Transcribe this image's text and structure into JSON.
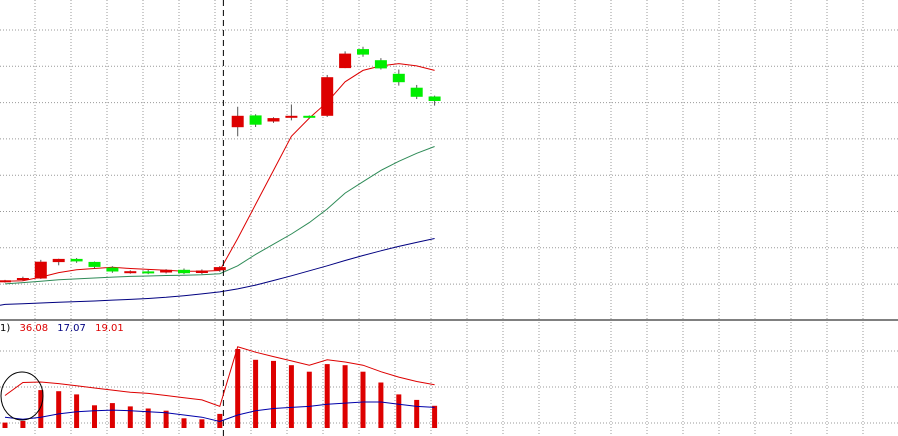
{
  "chart_data": [
    {
      "type": "candlestick",
      "panel": "price",
      "x": [
        0,
        1,
        2,
        3,
        4,
        5,
        6,
        7,
        8,
        9,
        10,
        11,
        12,
        13,
        14,
        15,
        16,
        17,
        18,
        19,
        20,
        21,
        22,
        23,
        24
      ],
      "ohlc": [
        [
          61.0,
          61.8,
          60.6,
          61.6
        ],
        [
          61.8,
          63.2,
          61.5,
          62.6
        ],
        [
          62.4,
          70.6,
          62.2,
          69.8
        ],
        [
          69.6,
          71.1,
          68.2,
          71.0
        ],
        [
          71.0,
          71.4,
          69.3,
          69.9
        ],
        [
          69.7,
          69.9,
          66.8,
          67.5
        ],
        [
          67.2,
          67.8,
          64.9,
          65.5
        ],
        [
          65.3,
          66.0,
          64.5,
          65.6
        ],
        [
          65.5,
          66.2,
          64.3,
          64.7
        ],
        [
          65.0,
          66.5,
          64.6,
          66.2
        ],
        [
          66.2,
          66.8,
          64.3,
          64.7
        ],
        [
          64.8,
          66.4,
          64.3,
          65.9
        ],
        [
          66.0,
          67.9,
          65.3,
          67.4
        ],
        [
          129.0,
          138.0,
          125.0,
          134.0
        ],
        [
          134.2,
          134.7,
          129.1,
          130.1
        ],
        [
          131.5,
          133.4,
          130.9,
          133.0
        ],
        [
          133.2,
          139.0,
          132.0,
          134.0
        ],
        [
          134.0,
          134.2,
          132.8,
          133.5
        ],
        [
          134.0,
          152.0,
          133.5,
          151.0
        ],
        [
          155.0,
          162.4,
          155.0,
          161.4
        ],
        [
          163.4,
          164.4,
          160.0,
          161.0
        ],
        [
          158.5,
          159.4,
          154.4,
          154.9
        ],
        [
          152.5,
          154.4,
          147.3,
          148.8
        ],
        [
          146.4,
          147.6,
          141.4,
          142.4
        ],
        [
          142.5,
          142.9,
          138.5,
          140.5
        ]
      ],
      "moving_averages": [
        {
          "color": "#dd0000",
          "values": [
            61.2,
            61.4,
            63.0,
            65.0,
            66.2,
            66.8,
            67.3,
            66.8,
            66.4,
            66.0,
            65.6,
            65.6,
            65.9,
            80.0,
            95.0,
            110.0,
            125.0,
            133.0,
            140.0,
            149.0,
            154.0,
            156.0,
            157.0,
            156.0,
            154.0
          ]
        },
        {
          "color": "#2e8b57",
          "values": [
            60.0,
            60.6,
            61.2,
            61.8,
            62.2,
            62.6,
            63.0,
            63.3,
            63.5,
            63.7,
            63.8,
            64.0,
            64.5,
            68.0,
            73.0,
            77.5,
            82.0,
            87.0,
            93.0,
            100.0,
            105.0,
            110.0,
            114.0,
            117.5,
            120.5
          ]
        },
        {
          "color": "#000080",
          "values": [
            51.0,
            51.3,
            51.6,
            51.9,
            52.2,
            52.5,
            52.9,
            53.2,
            53.6,
            54.1,
            54.8,
            55.6,
            56.5,
            57.8,
            59.5,
            61.5,
            63.6,
            65.8,
            68.0,
            70.3,
            72.5,
            74.6,
            76.5,
            78.3,
            80.0
          ]
        }
      ],
      "ylim": [
        45,
        185
      ],
      "grid": true,
      "marker_index": 12.2,
      "colors": {
        "up": "#dd0000",
        "down": "#00ee00",
        "grid": "#999999",
        "border": "#000000",
        "marker": "#000000"
      }
    },
    {
      "type": "bar",
      "panel": "indicator",
      "x": [
        0,
        1,
        2,
        3,
        4,
        5,
        6,
        7,
        8,
        9,
        10,
        11,
        12,
        13,
        14,
        15,
        16,
        17,
        18,
        19,
        20,
        21,
        22,
        23,
        24
      ],
      "values": [
        5.0,
        6.5,
        35.0,
        34.0,
        31.0,
        21.0,
        23.0,
        20.0,
        18.0,
        16.0,
        9.0,
        8.0,
        13.0,
        73.0,
        63.0,
        62.0,
        58.0,
        52.0,
        59.0,
        58.0,
        52.0,
        42.0,
        31.0,
        26.0,
        20.5
      ],
      "lines": [
        {
          "color": "#dd0000",
          "values": [
            30.0,
            42.0,
            42.5,
            41.0,
            39.0,
            37.0,
            35.0,
            33.0,
            32.0,
            30.0,
            28.0,
            26.0,
            20.0,
            75.0,
            70.0,
            66.0,
            62.0,
            58.0,
            63.0,
            61.0,
            58.0,
            52.0,
            47.0,
            43.0,
            40.0
          ]
        },
        {
          "color": "#0000aa",
          "values": [
            10.0,
            8.0,
            10.0,
            13.0,
            15.0,
            16.0,
            16.5,
            16.0,
            15.0,
            14.0,
            12.0,
            10.0,
            6.0,
            12.0,
            16.0,
            18.0,
            19.0,
            20.0,
            22.0,
            23.0,
            24.0,
            24.0,
            22.0,
            20.0,
            19.0
          ]
        }
      ],
      "ylim": [
        0,
        85
      ],
      "grid": true,
      "annotation": "circle",
      "colors": {
        "bar": "#dd0000",
        "grid": "#999999"
      }
    }
  ],
  "readout": {
    "prefix": "1)",
    "values": [
      {
        "text": "36.08",
        "color": "#dd0000"
      },
      {
        "text": "17.07",
        "color": "#000080"
      },
      {
        "text": "19.01",
        "color": "#dd0000"
      }
    ]
  }
}
